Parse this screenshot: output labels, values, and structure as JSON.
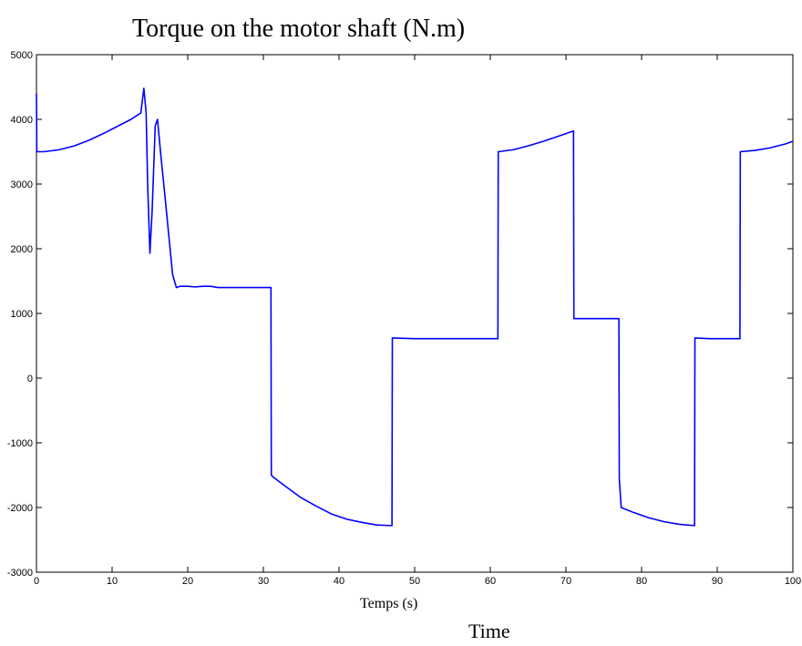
{
  "chart_data": {
    "type": "line",
    "title": "Torque on the motor shaft (N.m)",
    "xlabel": "Temps (s)",
    "caption": "Time",
    "ylabel": "",
    "xlim": [
      0,
      100
    ],
    "ylim": [
      -3000,
      5000
    ],
    "x_ticks": [
      0,
      10,
      20,
      30,
      40,
      50,
      60,
      70,
      80,
      90,
      100
    ],
    "y_ticks": [
      -3000,
      -2000,
      -1000,
      0,
      1000,
      2000,
      3000,
      4000,
      5000
    ],
    "grid": false,
    "line_color": "#0000ff",
    "series": [
      {
        "x": [
          0,
          0.05,
          1,
          3,
          5,
          7,
          9,
          11,
          12.5,
          13.8,
          14.2,
          14.5,
          14.7,
          15.0,
          15.3,
          15.7,
          16.0,
          16.4,
          17.0,
          17.5,
          18.0,
          18.5,
          19.0,
          20,
          21,
          22,
          23,
          24,
          26,
          28,
          31,
          31.05,
          31.3,
          33,
          35,
          37,
          39,
          41,
          43,
          45,
          47,
          47.05,
          50,
          53,
          56,
          59,
          61,
          61.05,
          63,
          65,
          67,
          69,
          71,
          71.05,
          73,
          75,
          77,
          77.05,
          77.3,
          79,
          81,
          83,
          85,
          87,
          87.05,
          89,
          91,
          93,
          93.05,
          95,
          97,
          99,
          100
        ],
        "y": [
          4400,
          3500,
          3500,
          3530,
          3590,
          3680,
          3790,
          3910,
          4000,
          4100,
          4480,
          4100,
          3000,
          1930,
          2600,
          3900,
          4000,
          3500,
          2800,
          2200,
          1600,
          1400,
          1420,
          1420,
          1410,
          1420,
          1420,
          1400,
          1400,
          1400,
          1400,
          -1500,
          -1530,
          -1680,
          -1850,
          -1980,
          -2100,
          -2180,
          -2230,
          -2270,
          -2280,
          620,
          610,
          610,
          610,
          610,
          610,
          3500,
          3530,
          3590,
          3660,
          3740,
          3820,
          920,
          920,
          920,
          920,
          -1550,
          -2000,
          -2080,
          -2160,
          -2220,
          -2260,
          -2280,
          620,
          610,
          610,
          610,
          3500,
          3520,
          3560,
          3620,
          3660
        ]
      }
    ]
  }
}
